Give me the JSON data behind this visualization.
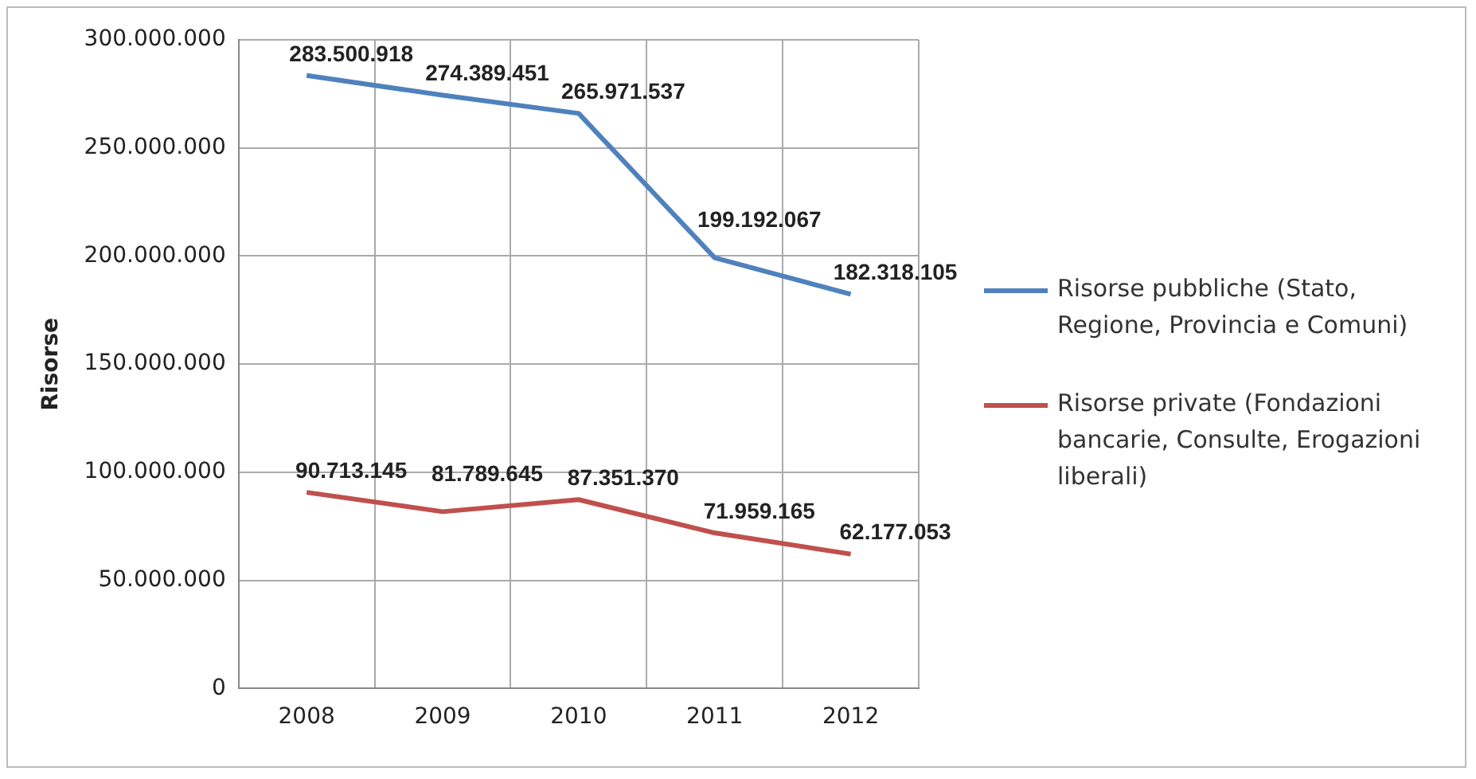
{
  "chart_data": {
    "type": "line",
    "ylabel": "Risorse",
    "categories": [
      "2008",
      "2009",
      "2010",
      "2011",
      "2012"
    ],
    "series": [
      {
        "name": "Risorse pubbliche (Stato, Regione, Provincia e Comuni)",
        "color": "#4f81bd",
        "values": [
          283500918,
          274389451,
          265971537,
          199192067,
          182318105
        ],
        "value_labels": [
          "283.500.918",
          "274.389.451",
          "265.971.537",
          "199.192.067",
          "182.318.105"
        ]
      },
      {
        "name": "Risorse private (Fondazioni bancarie, Consulte, Erogazioni liberali)",
        "color": "#c0504d",
        "values": [
          90713145,
          81789645,
          87351370,
          71959165,
          62177053
        ],
        "value_labels": [
          "90.713.145",
          "81.789.645",
          "87.351.370",
          "71.959.165",
          "62.177.053"
        ]
      }
    ],
    "ylim": [
      0,
      300000000
    ],
    "yticks": [
      0,
      {
        "value": 50000000,
        "label": "50.000.000"
      },
      {
        "value": 100000000,
        "label": "100.000.000"
      },
      {
        "value": 150000000,
        "label": "150.000.000"
      },
      {
        "value": 200000000,
        "label": "200.000.000"
      },
      {
        "value": 250000000,
        "label": "250.000.000"
      },
      {
        "value": 300000000,
        "label": "300.000.000"
      }
    ],
    "grid": true,
    "legend": "right",
    "marker": "none",
    "line_style": "solid"
  }
}
